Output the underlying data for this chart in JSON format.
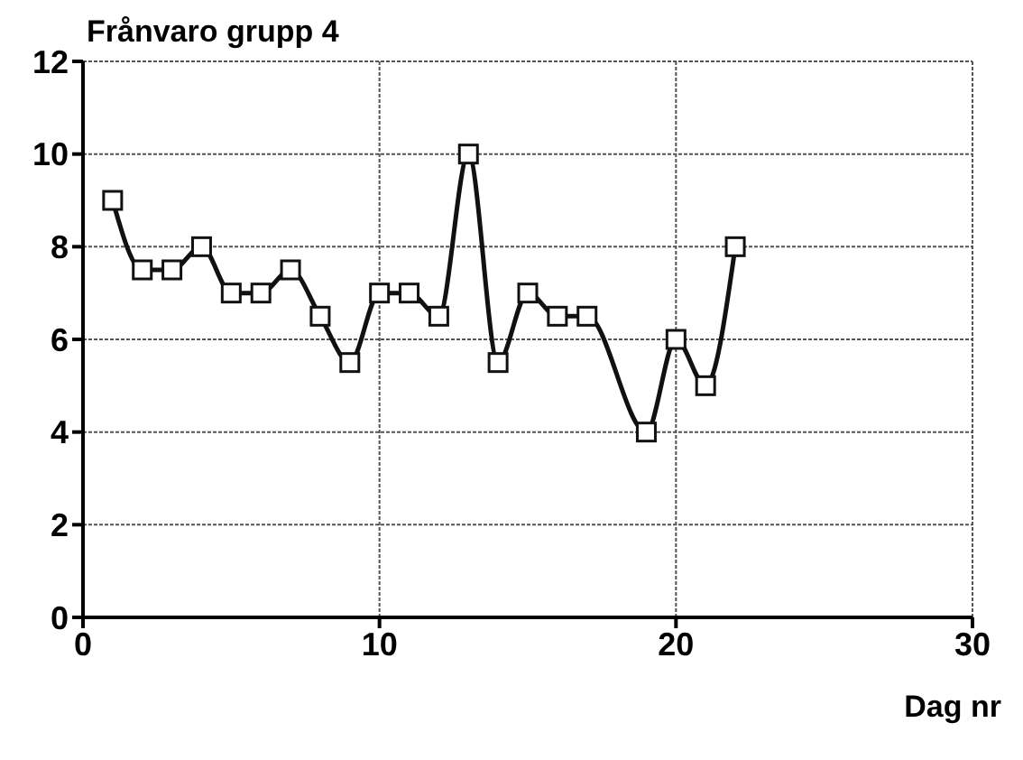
{
  "chart_data": {
    "type": "line",
    "title": "Frånvaro grupp 4",
    "xlabel": "Dag nr",
    "x": [
      1,
      2,
      3,
      4,
      5,
      6,
      7,
      8,
      9,
      10,
      11,
      12,
      13,
      14,
      15,
      16,
      17,
      18,
      19,
      20,
      21,
      22
    ],
    "series": [
      {
        "color": "#111111",
        "values": [
          9,
          7.5,
          7.5,
          8,
          7,
          7,
          7.5,
          6.5,
          5.5,
          7,
          7,
          6.5,
          10,
          5.5,
          7,
          6.5,
          6.5,
          null,
          4,
          6,
          5,
          8
        ]
      }
    ],
    "xlim": [
      0,
      30
    ],
    "xticks": [
      0,
      10,
      20,
      30
    ],
    "ylim": [
      0,
      12
    ],
    "yticks": [
      0,
      2,
      4,
      6,
      8,
      10,
      12
    ],
    "grid": true,
    "marker": "square"
  }
}
